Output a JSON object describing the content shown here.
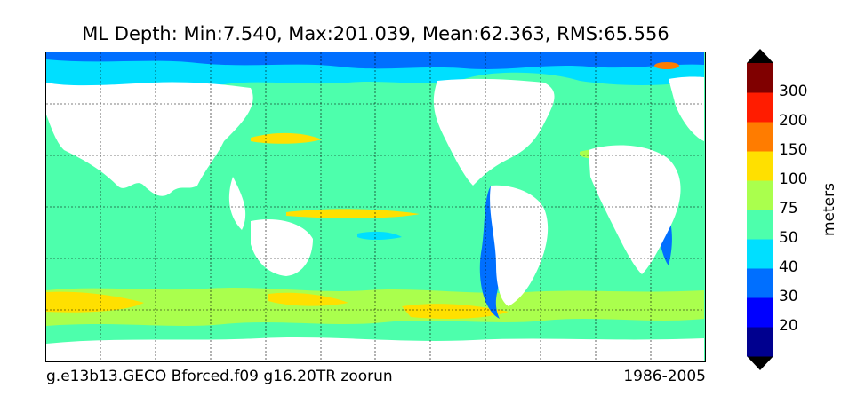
{
  "title": "ML Depth: Min:7.540, Max:201.039, Mean:62.363, RMS:65.556",
  "footer": {
    "run": "g.e13b13.GECO Bforced.f09 g16.20TR zoorun",
    "period": "1986-2005"
  },
  "colorbar": {
    "units": "meters",
    "levels": [
      "20",
      "30",
      "40",
      "50",
      "75",
      "100",
      "150",
      "200",
      "300"
    ],
    "colors": [
      "#00008f",
      "#0000ff",
      "#006fff",
      "#00dfff",
      "#4dffac",
      "#aaff4d",
      "#ffe000",
      "#ff7c00",
      "#ff1c00",
      "#800000"
    ],
    "under_color": "#000000",
    "over_color": "#000000"
  }
}
